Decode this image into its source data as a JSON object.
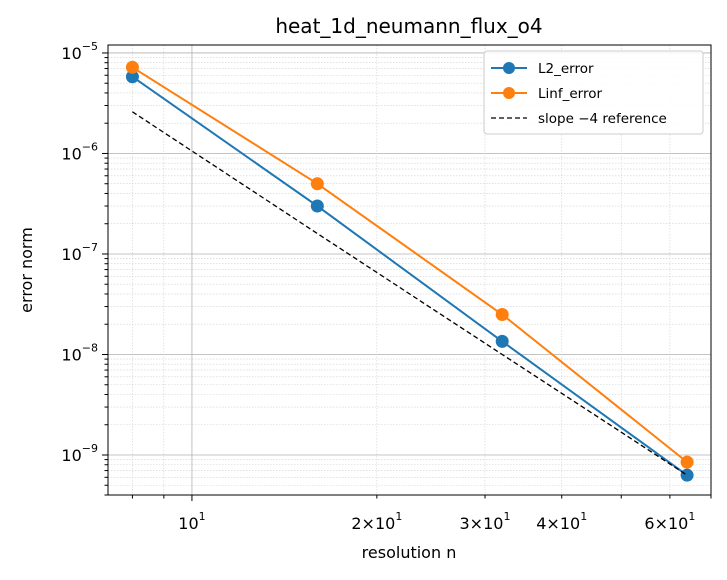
{
  "chart_data": {
    "type": "line",
    "title": "heat_1d_neumann_flux_o4",
    "xlabel": "resolution n",
    "ylabel": "error norm",
    "xscale": "log",
    "yscale": "log",
    "xlim": [
      7.3,
      70
    ],
    "ylim": [
      4e-10,
      1.2e-05
    ],
    "grid": true,
    "legend_position": "top-right",
    "x": [
      8,
      16,
      32,
      64
    ],
    "series": [
      {
        "name": "L2_error",
        "values": [
          5.8e-06,
          3e-07,
          1.35e-08,
          6.3e-10
        ],
        "color": "#1f77b4",
        "marker": "circle",
        "style": "solid"
      },
      {
        "name": "Linf_error",
        "values": [
          7.2e-06,
          5e-07,
          2.5e-08,
          8.5e-10
        ],
        "color": "#ff7f0e",
        "marker": "circle",
        "style": "solid"
      },
      {
        "name": "slope −4 reference",
        "values": [
          2.6e-06,
          1.6e-07,
          1e-08,
          6.3e-10
        ],
        "color": "#000000",
        "marker": "none",
        "style": "dashed"
      }
    ],
    "x_ticks": [
      {
        "value": 10,
        "base": "10",
        "exp": "1"
      },
      {
        "value": 20,
        "base": "2×10",
        "exp": "1"
      },
      {
        "value": 30,
        "base": "3×10",
        "exp": "1"
      },
      {
        "value": 40,
        "base": "4×10",
        "exp": "1"
      },
      {
        "value": 60,
        "base": "6×10",
        "exp": "1"
      }
    ],
    "y_ticks": [
      {
        "value": 1e-09,
        "base": "10",
        "exp": "−9"
      },
      {
        "value": 1e-08,
        "base": "10",
        "exp": "−8"
      },
      {
        "value": 1e-07,
        "base": "10",
        "exp": "−7"
      },
      {
        "value": 1e-06,
        "base": "10",
        "exp": "−6"
      },
      {
        "value": 1e-05,
        "base": "10",
        "exp": "−5"
      }
    ]
  }
}
